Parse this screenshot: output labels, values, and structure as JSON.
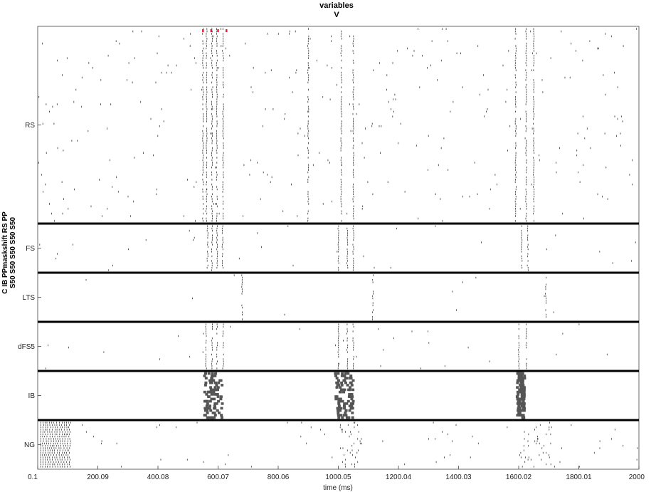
{
  "chart_data": {
    "type": "raster",
    "title_line1": "variables",
    "title_line2": "V",
    "xlabel": "time (ms)",
    "ylabel_line1": "C IB PPmaskshift RS PP",
    "ylabel_line2": "S50 S50 S50 S50 S50",
    "xlim": [
      0.1,
      2000
    ],
    "xticks": [
      0.1,
      200.09,
      400.08,
      600.07,
      800.06,
      1000.05,
      1200.04,
      1400.03,
      1600.02,
      1800.01,
      2000
    ],
    "xtick_labels": [
      "0.1",
      "200.09",
      "400.08",
      "600.07",
      "800.06",
      "1000.05",
      "1200.04",
      "1400.03",
      "1600.02",
      "1800.01",
      "2000"
    ],
    "populations": [
      {
        "name": "RS",
        "n_cells": 80,
        "bursts": [
          [
            550,
            562,
            580,
            596,
            617
          ],
          [
            900,
            1010,
            1050
          ],
          [
            1590,
            1625,
            1650
          ]
        ],
        "background_rate": 0.045
      },
      {
        "name": "FS",
        "n_cells": 20,
        "bursts": [
          [
            565,
            580,
            597,
            615
          ],
          [
            1000,
            1030,
            1050
          ],
          [
            1610,
            1630
          ]
        ],
        "background_rate": 0.02
      },
      {
        "name": "LTS",
        "n_cells": 20,
        "bursts": [
          [
            680
          ],
          [
            1115
          ],
          [
            1690
          ]
        ],
        "background_rate": 0.01
      },
      {
        "name": "dFS5",
        "n_cells": 20,
        "bursts": [
          [
            560,
            580,
            597,
            617
          ],
          [
            1000,
            1030,
            1050
          ],
          [
            1600,
            1625
          ]
        ],
        "background_rate": 0.02
      },
      {
        "name": "IB",
        "n_cells": 20,
        "bursts": [
          [
            555,
            575,
            590,
            615
          ],
          [
            990,
            1030,
            1050
          ],
          [
            1595,
            1610,
            1620
          ]
        ],
        "background_rate": 0.0
      },
      {
        "name": "NG",
        "n_cells": 20,
        "bursts": [
          [
            10,
            110
          ],
          [
            1000,
            1090
          ],
          [
            1600,
            1710
          ]
        ],
        "background_rate": 0.03
      }
    ],
    "highlighted_spikes": [
      550,
      577,
      600,
      628
    ],
    "colors": {
      "spike": "#333333",
      "burst": "#555555",
      "divider": "#000000",
      "highlight": "#e8192c"
    }
  }
}
